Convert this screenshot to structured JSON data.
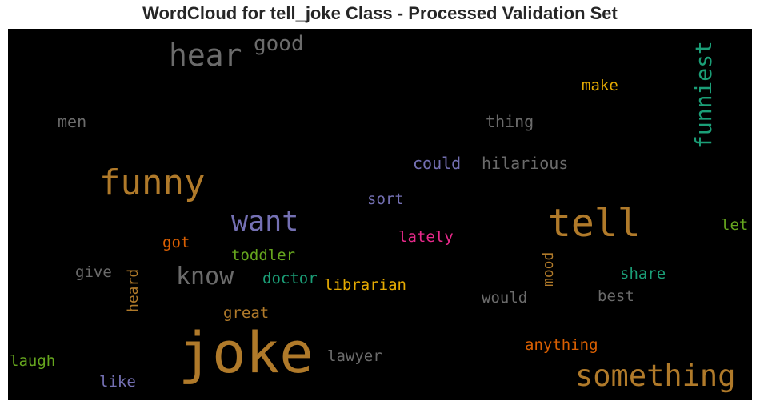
{
  "title": "WordCloud for tell_joke Class - Processed Validation Set",
  "words": {
    "joke": {
      "text": "joke",
      "color": "#b07a2a"
    },
    "tell": {
      "text": "tell",
      "color": "#b07a2a"
    },
    "funny": {
      "text": "funny",
      "color": "#b07a2a"
    },
    "something": {
      "text": "something",
      "color": "#b07a2a"
    },
    "want": {
      "text": "want",
      "color": "#7470b3"
    },
    "hear": {
      "text": "hear",
      "color": "#6b6b6b"
    },
    "know": {
      "text": "know",
      "color": "#6b6b6b"
    },
    "good": {
      "text": "good",
      "color": "#6b6b6b"
    },
    "funniest": {
      "text": "funniest",
      "color": "#1b9e77"
    },
    "make": {
      "text": "make",
      "color": "#e6ab02"
    },
    "thing": {
      "text": "thing",
      "color": "#6b6b6b"
    },
    "men": {
      "text": "men",
      "color": "#6b6b6b"
    },
    "could": {
      "text": "could",
      "color": "#7470b3"
    },
    "hilarious": {
      "text": "hilarious",
      "color": "#6b6b6b"
    },
    "sort": {
      "text": "sort",
      "color": "#7470b3"
    },
    "lately": {
      "text": "lately",
      "color": "#e7298a"
    },
    "let": {
      "text": "let",
      "color": "#66a61e"
    },
    "got": {
      "text": "got",
      "color": "#d95f02"
    },
    "toddler": {
      "text": "toddler",
      "color": "#66a61e"
    },
    "doctor": {
      "text": "doctor",
      "color": "#1b9e77"
    },
    "librarian": {
      "text": "librarian",
      "color": "#e6ab02"
    },
    "give": {
      "text": "give",
      "color": "#6b6b6b"
    },
    "heard": {
      "text": "heard",
      "color": "#b07a2a"
    },
    "mood": {
      "text": "mood",
      "color": "#b07a2a"
    },
    "share": {
      "text": "share",
      "color": "#1b9e77"
    },
    "would": {
      "text": "would",
      "color": "#6b6b6b"
    },
    "best": {
      "text": "best",
      "color": "#6b6b6b"
    },
    "great": {
      "text": "great",
      "color": "#b07a2a"
    },
    "anything": {
      "text": "anything",
      "color": "#d95f02"
    },
    "lawyer": {
      "text": "lawyer",
      "color": "#6b6b6b"
    },
    "laugh": {
      "text": "laugh",
      "color": "#66a61e"
    },
    "like": {
      "text": "like",
      "color": "#7470b3"
    }
  }
}
